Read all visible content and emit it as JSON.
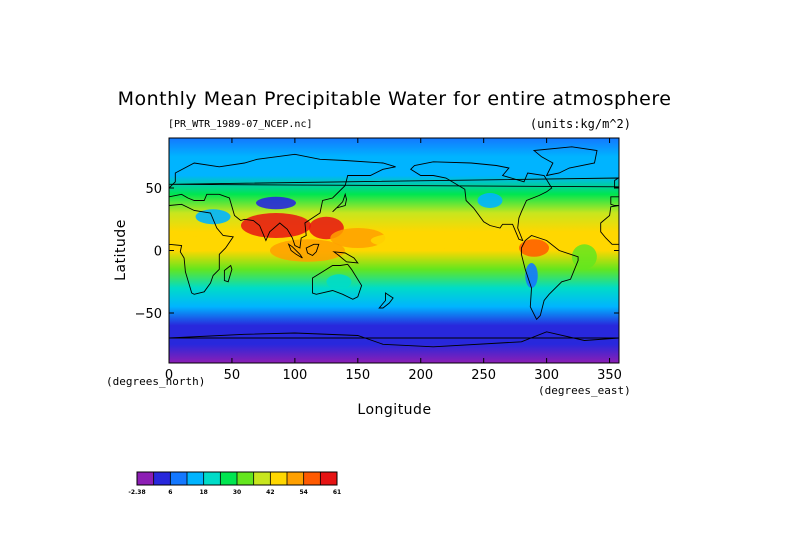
{
  "title": "Monthly Mean Precipitable Water for entire atmosphere",
  "file_label": "[PR_WTR_1989-07_NCEP.nc]",
  "units_label": "(units:kg/m^2)",
  "lat_unit_label": "(degrees_north)",
  "lon_unit_label": "(degrees_east)",
  "chart_data": {
    "type": "heatmap",
    "title": "Monthly Mean Precipitable Water for entire atmosphere",
    "xlabel": "Longitude",
    "ylabel": "Latitude",
    "xlim": [
      0,
      357.5
    ],
    "ylim": [
      -90,
      90
    ],
    "x_ticks": [
      0,
      50,
      100,
      150,
      200,
      250,
      300,
      350
    ],
    "y_ticks": [
      50,
      0,
      -50
    ],
    "y_tick_labels": [
      "50",
      "0",
      "−50"
    ],
    "colorbar": {
      "tick_labels": [
        "-2.38",
        "6",
        "18",
        "30",
        "42",
        "54",
        "61"
      ],
      "colors": [
        "#8c1eb4",
        "#2828dc",
        "#1478ff",
        "#00b4ff",
        "#00dcc8",
        "#00e650",
        "#64e61e",
        "#c8e61e",
        "#ffd700",
        "#ffa000",
        "#ff5a00",
        "#e61414"
      ]
    },
    "zonal_profile": {
      "lat": [
        90,
        75,
        60,
        45,
        30,
        15,
        0,
        -15,
        -30,
        -45,
        -60,
        -75,
        -90
      ],
      "value": [
        12,
        14,
        17,
        26,
        35,
        44,
        44,
        30,
        21,
        14,
        8,
        3,
        0
      ]
    }
  }
}
